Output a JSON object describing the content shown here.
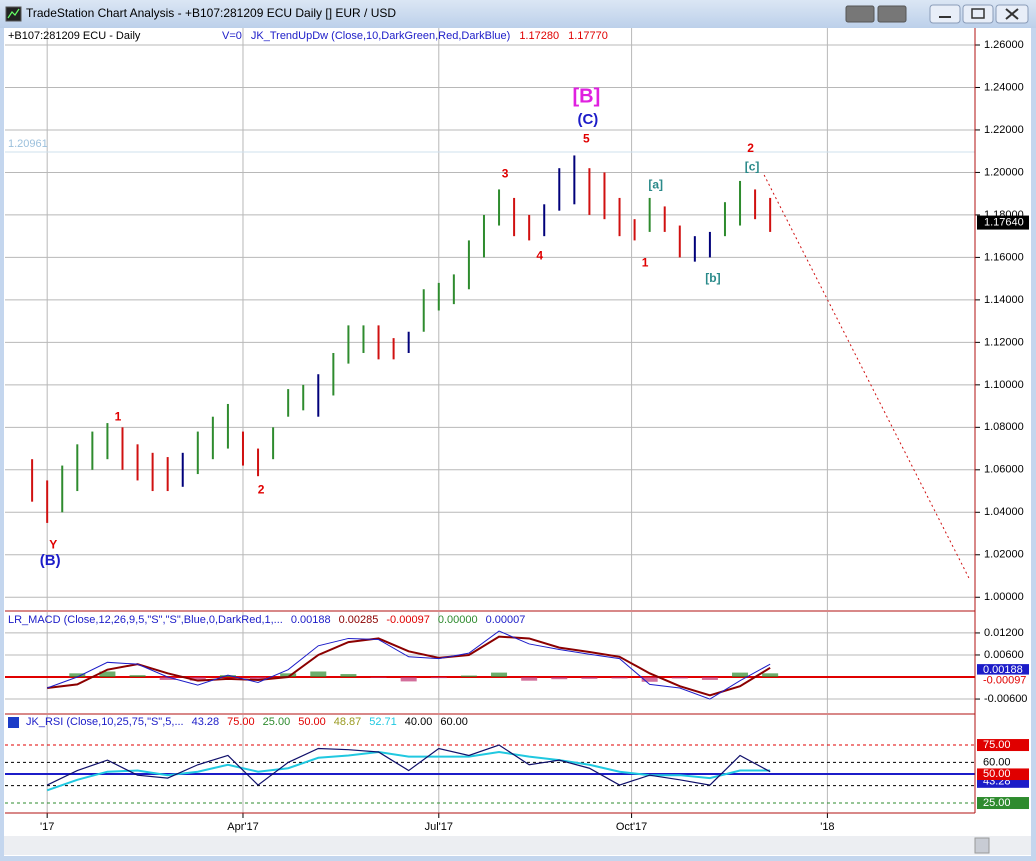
{
  "window": {
    "title": "TradeStation Chart Analysis - +B107:281209 ECU Daily [] EUR / USD"
  },
  "chart_data": [
    {
      "type": "ohlc",
      "title": "+B107:281209 ECU - Daily",
      "subtitle_items": [
        {
          "text": "V=0",
          "color": "#1c1cc8"
        },
        {
          "text": "JK_TrendUpDw (Close,10,DarkGreen,Red,DarkBlue)",
          "color": "#1c1cc8"
        },
        {
          "text": "1.17280",
          "color": "#e00000"
        },
        {
          "text": "1.17770",
          "color": "#e00000"
        }
      ],
      "x": [
        -5,
        0,
        5,
        10,
        15,
        20,
        25,
        30,
        35,
        40,
        45,
        50,
        55,
        60,
        65,
        70,
        75,
        80,
        85,
        90,
        95,
        100,
        105,
        110,
        115,
        120,
        125,
        130,
        135,
        140,
        145,
        150,
        155,
        160,
        165,
        170,
        175,
        180,
        185,
        190,
        195,
        200,
        205,
        210,
        215,
        220,
        225,
        230,
        235,
        240
      ],
      "high": [
        1.065,
        1.055,
        1.062,
        1.072,
        1.078,
        1.082,
        1.08,
        1.072,
        1.068,
        1.066,
        1.068,
        1.078,
        1.085,
        1.091,
        1.078,
        1.07,
        1.08,
        1.098,
        1.1,
        1.105,
        1.115,
        1.128,
        1.128,
        1.128,
        1.122,
        1.125,
        1.145,
        1.148,
        1.152,
        1.168,
        1.18,
        1.192,
        1.188,
        1.18,
        1.185,
        1.202,
        1.208,
        1.202,
        1.2,
        1.188,
        1.178,
        1.188,
        1.184,
        1.175,
        1.17,
        1.172,
        1.186,
        1.196,
        1.192,
        1.188
      ],
      "low": [
        1.045,
        1.035,
        1.04,
        1.05,
        1.06,
        1.065,
        1.06,
        1.055,
        1.05,
        1.05,
        1.052,
        1.058,
        1.065,
        1.07,
        1.062,
        1.057,
        1.065,
        1.085,
        1.088,
        1.085,
        1.095,
        1.11,
        1.115,
        1.112,
        1.112,
        1.115,
        1.125,
        1.135,
        1.138,
        1.145,
        1.16,
        1.175,
        1.17,
        1.168,
        1.17,
        1.182,
        1.185,
        1.18,
        1.178,
        1.17,
        1.168,
        1.172,
        1.172,
        1.16,
        1.158,
        1.16,
        1.17,
        1.175,
        1.178,
        1.172
      ],
      "colors": [
        "#d01010",
        "#d01010",
        "#2e8b2e",
        "#2e8b2e",
        "#2e8b2e",
        "#2e8b2e",
        "#d01010",
        "#d01010",
        "#d01010",
        "#d01010",
        "#00007a",
        "#2e8b2e",
        "#2e8b2e",
        "#2e8b2e",
        "#d01010",
        "#d01010",
        "#2e8b2e",
        "#2e8b2e",
        "#2e8b2e",
        "#00007a",
        "#2e8b2e",
        "#2e8b2e",
        "#2e8b2e",
        "#d01010",
        "#d01010",
        "#00007a",
        "#2e8b2e",
        "#2e8b2e",
        "#2e8b2e",
        "#2e8b2e",
        "#2e8b2e",
        "#2e8b2e",
        "#d01010",
        "#d01010",
        "#00007a",
        "#00007a",
        "#00007a",
        "#d01010",
        "#d01010",
        "#d01010",
        "#d01010",
        "#2e8b2e",
        "#d01010",
        "#d01010",
        "#00007a",
        "#00007a",
        "#2e8b2e",
        "#2e8b2e",
        "#d01010",
        "#d01010"
      ],
      "xlim": [
        -14,
        308
      ],
      "xticks": [
        {
          "value": 0,
          "label": "'17"
        },
        {
          "value": 65,
          "label": "Apr'17"
        },
        {
          "value": 130,
          "label": "Jul'17"
        },
        {
          "value": 194,
          "label": "Oct'17"
        },
        {
          "value": 259,
          "label": "'18"
        }
      ],
      "ylim": [
        0.994,
        1.268
      ],
      "yticks": [
        {
          "value": 1.0,
          "label": "1.00000"
        },
        {
          "value": 1.02,
          "label": "1.02000"
        },
        {
          "value": 1.04,
          "label": "1.04000"
        },
        {
          "value": 1.06,
          "label": "1.06000"
        },
        {
          "value": 1.08,
          "label": "1.08000"
        },
        {
          "value": 1.1,
          "label": "1.10000"
        },
        {
          "value": 1.12,
          "label": "1.12000"
        },
        {
          "value": 1.14,
          "label": "1.14000"
        },
        {
          "value": 1.16,
          "label": "1.16000"
        },
        {
          "value": 1.18,
          "label": "1.18000"
        },
        {
          "value": 1.2,
          "label": "1.20000"
        },
        {
          "value": 1.22,
          "label": "1.22000"
        },
        {
          "value": 1.24,
          "label": "1.24000"
        },
        {
          "value": 1.26,
          "label": "1.26000"
        }
      ],
      "grid": true,
      "last_price": {
        "value": 1.1764,
        "label": "1.17640"
      },
      "reference_level": {
        "value": 1.20961,
        "label": "1.20961",
        "color": "#9cc0dc"
      },
      "trend_line": {
        "x": [
          238,
          306
        ],
        "y": [
          1.1988,
          1.009
        ],
        "color": "#d01010"
      },
      "annotations": [
        {
          "text": "Y",
          "x": 2,
          "y": 1.0245,
          "color": "#e00000"
        },
        {
          "text": "(B)",
          "x": 1,
          "y": 1.017,
          "color": "#1c1cc8"
        },
        {
          "text": "1",
          "x": 23.5,
          "y": 1.0848,
          "color": "#e00000"
        },
        {
          "text": "2",
          "x": 71,
          "y": 1.0504,
          "color": "#e00000"
        },
        {
          "text": "3",
          "x": 152,
          "y": 1.1992,
          "color": "#e00000"
        },
        {
          "text": "4",
          "x": 163.5,
          "y": 1.1606,
          "color": "#e00000"
        },
        {
          "text": "5",
          "x": 179,
          "y": 1.2157,
          "color": "#e00000"
        },
        {
          "text": "(C)",
          "x": 179.5,
          "y": 1.2247,
          "color": "#1c1cc8"
        },
        {
          "text": "[B]",
          "x": 179,
          "y": 1.2355,
          "color": "#e020e0"
        },
        {
          "text": "1",
          "x": 198.5,
          "y": 1.1573,
          "color": "#e00000"
        },
        {
          "text": "[a]",
          "x": 202,
          "y": 1.194,
          "color": "#2a8a8a"
        },
        {
          "text": "[b]",
          "x": 221,
          "y": 1.1498,
          "color": "#2a8a8a"
        },
        {
          "text": "[c]",
          "x": 234,
          "y": 1.2025,
          "color": "#2a8a8a"
        },
        {
          "text": "2",
          "x": 233.5,
          "y": 1.211,
          "color": "#e00000"
        }
      ]
    },
    {
      "type": "macd",
      "title": "LR_MACD (Close,12,26,9,5,\"S\",\"S\",Blue,0,DarkRed,1,...",
      "readouts": [
        {
          "value": 0.00188,
          "label": "0.00188",
          "color": "#1c1cc8",
          "box": true
        },
        {
          "value": 0.00285,
          "label": "0.00285",
          "color": "#8b0000",
          "box": false
        },
        {
          "value": -0.00097,
          "label": "-0.00097",
          "color": "#e00000",
          "box": true
        },
        {
          "value": 0.0,
          "label": "0.00000",
          "color": "#2e8b2e",
          "box": false
        },
        {
          "value": 7e-05,
          "label": "0.00007",
          "color": "#1c1cc8",
          "box": false
        }
      ],
      "x": [
        0,
        10,
        20,
        30,
        40,
        50,
        60,
        70,
        80,
        90,
        100,
        110,
        120,
        130,
        140,
        150,
        160,
        170,
        180,
        190,
        200,
        210,
        220,
        230,
        240
      ],
      "macd": [
        -0.003,
        0.0,
        0.004,
        0.0035,
        0.0,
        -0.0022,
        0.0005,
        -0.0015,
        0.002,
        0.0085,
        0.0105,
        0.0102,
        0.0055,
        0.005,
        0.0065,
        0.0125,
        0.009,
        0.0075,
        0.0062,
        0.005,
        -0.002,
        -0.003,
        -0.006,
        -0.001,
        0.0035
      ],
      "signal": [
        -0.003,
        -0.002,
        0.002,
        0.0035,
        0.001,
        -0.001,
        -0.0005,
        -0.0008,
        0.0,
        0.006,
        0.0095,
        0.0105,
        0.007,
        0.0052,
        0.006,
        0.011,
        0.0105,
        0.008,
        0.0068,
        0.0055,
        0.001,
        -0.0025,
        -0.005,
        -0.0025,
        0.0025
      ],
      "histogram": [
        0.0,
        0.001,
        0.0015,
        0.0005,
        -0.0008,
        -0.001,
        0.0005,
        -0.0006,
        0.001,
        0.0015,
        0.0008,
        -0.0002,
        -0.0012,
        -0.0003,
        0.0004,
        0.0012,
        -0.001,
        -0.0006,
        -0.0005,
        -0.0004,
        -0.0013,
        -0.0004,
        -0.0008,
        0.0012,
        0.001
      ],
      "macd_color": "#1c1cc8",
      "signal_color": "#8b0000",
      "zero_line": 0,
      "ylim": [
        -0.0098,
        0.0177
      ],
      "yticks": [
        {
          "value": 0.012,
          "label": "0.01200"
        },
        {
          "value": 0.006,
          "label": "0.00600"
        },
        {
          "value": -0.006,
          "label": "-0.00600"
        }
      ]
    },
    {
      "type": "rsi",
      "title": "JK_RSI (Close,10,25,75,\"S\",5,...",
      "readouts": [
        {
          "value": 43.28,
          "label": "43.28",
          "color": "#1c1cc8",
          "box": true
        },
        {
          "value": 75,
          "label": "75.00",
          "color": "#e00000",
          "box": true,
          "line": "dashed"
        },
        {
          "value": 25,
          "label": "25.00",
          "color": "#2e8b2e",
          "box": true,
          "line": "dashed"
        },
        {
          "value": 50,
          "label": "50.00",
          "color": "#e00000",
          "box": true,
          "line": "solid"
        },
        {
          "value": 48.87,
          "label": "48.87",
          "color": "#9a9a20",
          "box": false
        },
        {
          "value": 52.71,
          "label": "52.71",
          "color": "#20c8e0",
          "box": false
        },
        {
          "value": 40,
          "label": "40.00",
          "color": "#000000",
          "box": false,
          "line": "dashed"
        },
        {
          "value": 60,
          "label": "60.00",
          "color": "#000000",
          "box": true,
          "line": "dashed"
        }
      ],
      "x": [
        0,
        10,
        20,
        30,
        40,
        50,
        60,
        70,
        80,
        90,
        100,
        110,
        120,
        130,
        140,
        150,
        160,
        170,
        180,
        190,
        200,
        210,
        220,
        230,
        240
      ],
      "rsi": [
        40.5,
        53,
        62,
        49,
        46.5,
        58,
        66,
        40.5,
        60,
        72,
        71,
        69,
        53,
        72,
        66,
        75,
        58,
        62,
        55,
        40.5,
        49,
        45,
        40.5,
        66,
        52
      ],
      "average": [
        36,
        45,
        52,
        53,
        49,
        52,
        58,
        52,
        55,
        64,
        66,
        69,
        65,
        65,
        65,
        69,
        65,
        62,
        58,
        52,
        49,
        49,
        46.5,
        53,
        53
      ],
      "rsi_color": "#10106a",
      "average_color": "#20c8e0",
      "ylim": [
        16.4,
        100.9
      ]
    }
  ]
}
